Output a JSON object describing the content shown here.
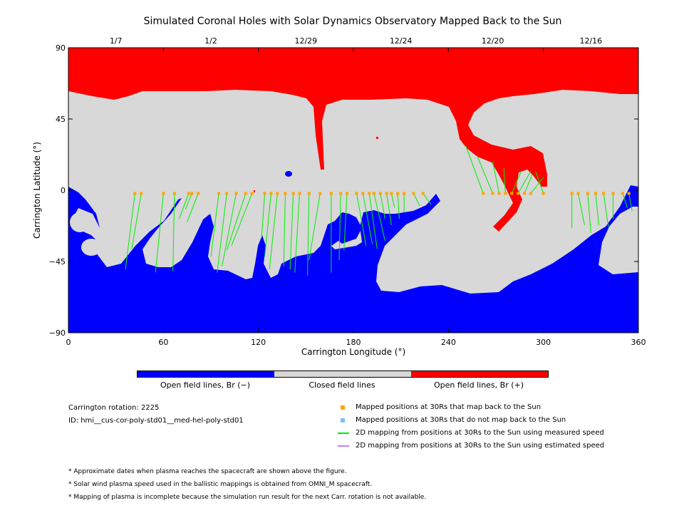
{
  "title": "Simulated Coronal Holes with Solar Dynamics Observatory Mapped Back to the Sun",
  "colors": {
    "neg": "#0000ff",
    "closed": "#d8d8d8",
    "pos": "#ff0000",
    "mapped": "#ffa500",
    "unmapped": "#7fbfff",
    "measured": "#00ee00",
    "estimated": "#c080ff"
  },
  "chart_data": {
    "type": "map",
    "xlabel": "Carrington Longitude (°)",
    "ylabel": "Carrington Latitude (°)",
    "xlim": [
      0,
      360
    ],
    "ylim": [
      -90,
      90
    ],
    "x_ticks": [
      "0",
      "60",
      "120",
      "180",
      "240",
      "300",
      "360"
    ],
    "y_ticks": [
      "90",
      "45",
      "0",
      "-45",
      "-90"
    ],
    "top_dates": [
      {
        "lon": 30,
        "label": "1/7"
      },
      {
        "lon": 90,
        "label": "1/2"
      },
      {
        "lon": 150,
        "label": "12/29"
      },
      {
        "lon": 210,
        "label": "12/24"
      },
      {
        "lon": 268,
        "label": "12/20"
      },
      {
        "lon": 330,
        "label": "12/16"
      }
    ],
    "mapping_lines": [
      [
        42,
        -2,
        36,
        -50
      ],
      [
        46,
        -2,
        40,
        -37
      ],
      [
        60,
        -2,
        55,
        -52
      ],
      [
        67,
        -2,
        66,
        -51
      ],
      [
        76,
        -2,
        70,
        -18
      ],
      [
        78,
        -2,
        74,
        -12
      ],
      [
        82,
        -2,
        75,
        -20
      ],
      [
        95,
        -2,
        90,
        -42
      ],
      [
        100,
        -2,
        94,
        -52
      ],
      [
        106,
        -2,
        97,
        -48
      ],
      [
        112,
        -2,
        100,
        -38
      ],
      [
        116,
        -2,
        103,
        -35
      ],
      [
        124,
        -2,
        122,
        -30
      ],
      [
        128,
        -2,
        124,
        -42
      ],
      [
        132,
        -2,
        127,
        -50
      ],
      [
        137,
        -2,
        136,
        -48
      ],
      [
        142,
        -2,
        140,
        -50
      ],
      [
        146,
        -2,
        143,
        -52
      ],
      [
        152,
        -2,
        151,
        -54
      ],
      [
        159,
        -2,
        152,
        -44
      ],
      [
        166,
        -2,
        166,
        -52
      ],
      [
        172,
        -2,
        171,
        -44
      ],
      [
        176,
        -2,
        174,
        -38
      ],
      [
        182,
        -2,
        188,
        -35
      ],
      [
        186,
        -2,
        192,
        -34
      ],
      [
        190,
        -2,
        195,
        -37
      ],
      [
        193,
        -2,
        200,
        -32
      ],
      [
        197,
        -2,
        200,
        -18
      ],
      [
        201,
        -2,
        204,
        -22
      ],
      [
        204,
        -2,
        206,
        -11
      ],
      [
        208,
        -2,
        209,
        -18
      ],
      [
        212,
        -2,
        212,
        -14
      ],
      [
        218,
        -2,
        222,
        -10
      ],
      [
        224,
        -2,
        229,
        -9
      ],
      [
        262,
        -2,
        251,
        28
      ],
      [
        268,
        -2,
        258,
        22
      ],
      [
        272,
        -2,
        268,
        18
      ],
      [
        276,
        -2,
        275,
        14
      ],
      [
        280,
        -2,
        286,
        12
      ],
      [
        284,
        -2,
        292,
        12
      ],
      [
        288,
        -2,
        293,
        10
      ],
      [
        292,
        -2,
        300,
        8
      ],
      [
        300,
        -2,
        295,
        12
      ],
      [
        318,
        -2,
        318,
        -24
      ],
      [
        322,
        -2,
        326,
        -22
      ],
      [
        328,
        -2,
        330,
        -27
      ],
      [
        333,
        -2,
        335,
        -22
      ],
      [
        338,
        -2,
        341,
        -23
      ],
      [
        344,
        -2,
        344,
        -18
      ],
      [
        350,
        -2,
        353,
        -11
      ],
      [
        354,
        -2,
        356,
        -13
      ]
    ],
    "mapped_points_lon": [
      42,
      46,
      60,
      67,
      76,
      78,
      82,
      95,
      100,
      106,
      112,
      116,
      124,
      128,
      132,
      137,
      142,
      146,
      152,
      159,
      166,
      172,
      176,
      182,
      186,
      190,
      193,
      197,
      201,
      204,
      208,
      212,
      218,
      224,
      262,
      268,
      272,
      276,
      280,
      284,
      288,
      292,
      300,
      318,
      322,
      328,
      333,
      338,
      344,
      350,
      354
    ],
    "mapped_points_lat": -2
  },
  "colorbar": {
    "neg_label": "Open field lines, Br (−)",
    "closed_label": "Closed field lines",
    "pos_label": "Open field lines, Br (+)"
  },
  "info": {
    "rotation": "Carrington rotation: 2225",
    "id": "ID: hmi__cus-cor-poly-std01__med-hel-poly-std01"
  },
  "legend": [
    {
      "label": "Mapped positions at 30Rs that map back to the Sun",
      "color": "#ffa500",
      "kind": "square"
    },
    {
      "label": "Mapped positions at 30Rs that do not map back to the Sun",
      "color": "#7fbfff",
      "kind": "square"
    },
    {
      "label": "2D mapping from positions at 30Rs to the Sun using measured speed",
      "color": "#00ee00",
      "kind": "line"
    },
    {
      "label": "2D mapping from positions at 30Rs to the Sun using estimated speed",
      "color": "#c080ff",
      "kind": "line"
    }
  ],
  "footnotes": [
    "* Approximate dates when plasma reaches the spacecraft are shown above the figure.",
    "* Solar wind plasma speed used in the ballistic mappings is obtained from OMNI_M spacecraft.",
    "* Mapping of plasma is incomplete because the simulation run result for the next Carr. rotation is not available."
  ]
}
